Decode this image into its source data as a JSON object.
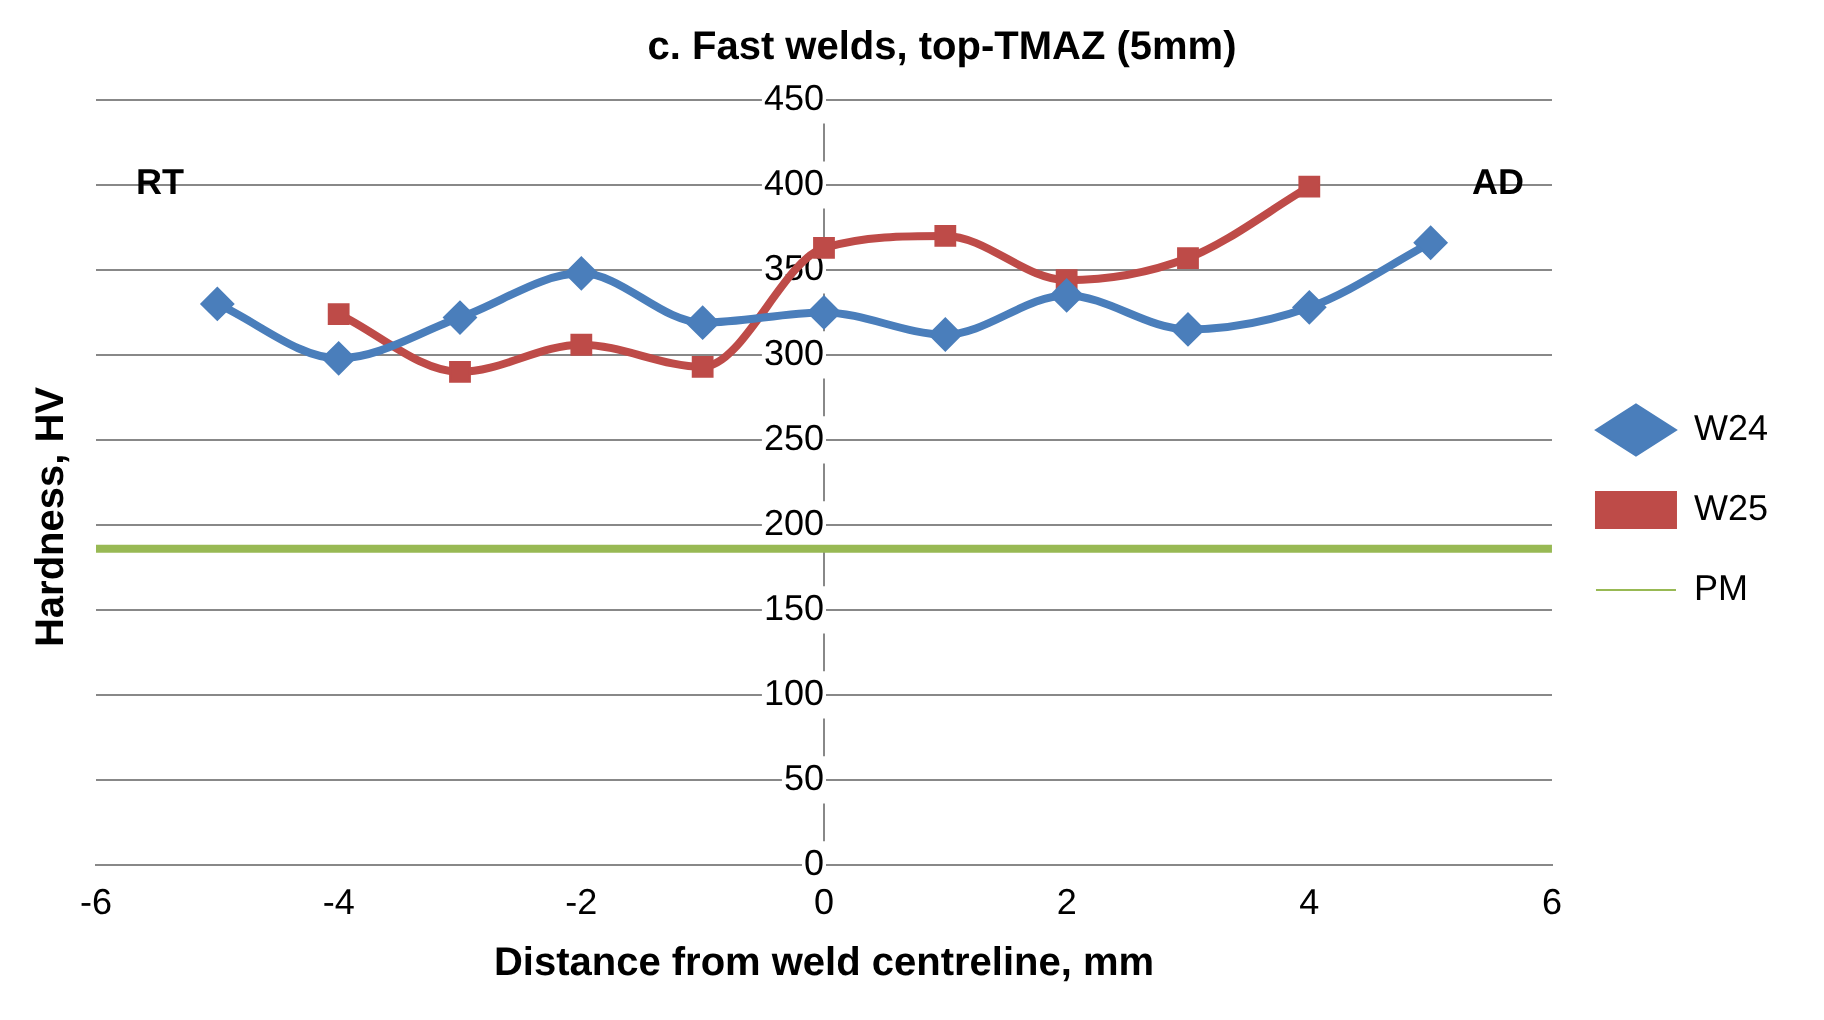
{
  "chart_data": {
    "type": "line",
    "title": "c. Fast welds, top-TMAZ (5mm)",
    "xlabel": "Distance from weld centreline, mm",
    "ylabel": "Hardness, HV",
    "x": [
      -5,
      -4,
      -3,
      -2,
      -1,
      0,
      1,
      2,
      3,
      4,
      5
    ],
    "series": [
      {
        "name": "W24",
        "color": "#4a7ebb",
        "marker": "diamond",
        "values": [
          330,
          298,
          322,
          348,
          319,
          325,
          312,
          335,
          315,
          328,
          366
        ]
      },
      {
        "name": "W25",
        "color": "#be4b48",
        "marker": "square",
        "x": [
          -4,
          -3,
          -2,
          -1,
          0,
          1,
          2,
          3,
          4
        ],
        "values": [
          324,
          290,
          306,
          293,
          363,
          370,
          344,
          357,
          399
        ]
      },
      {
        "name": "PM",
        "color": "#98b954",
        "marker": "none",
        "x": [
          -6,
          6
        ],
        "values": [
          186,
          186
        ]
      }
    ],
    "xlim": [
      -6,
      6
    ],
    "xticks": [
      -6,
      -4,
      -2,
      0,
      2,
      4,
      6
    ],
    "ylim": [
      0,
      450
    ],
    "yticks": [
      0,
      50,
      100,
      150,
      200,
      250,
      300,
      350,
      400,
      450
    ],
    "grid": "y",
    "legend": "right",
    "annotations": [
      "RT",
      "AD"
    ]
  }
}
